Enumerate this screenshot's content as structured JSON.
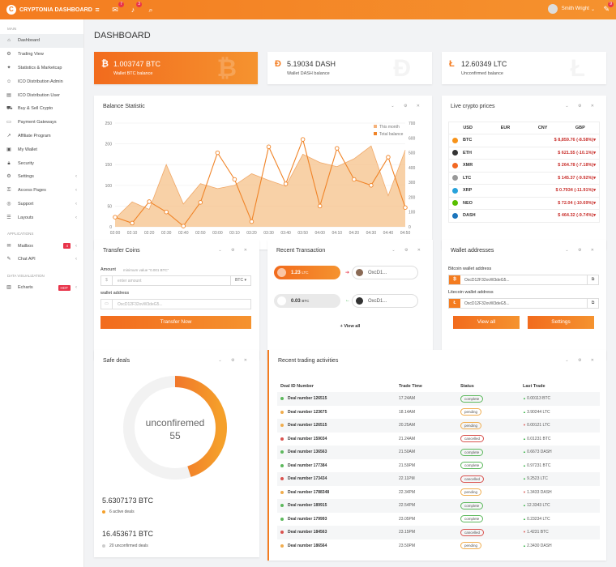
{
  "header": {
    "brand": "CRYPTONIA DASHBOARD",
    "user": "Smith Wright",
    "mail_badge": "7",
    "bell_badge": "3",
    "chat_badge": "9"
  },
  "sidebar": {
    "main_label": "MAIN",
    "apps_label": "APPLICATIONS",
    "dataviz_label": "DATA VISUALIZATION",
    "items": [
      {
        "label": "Dashboard",
        "icon": "home-icon"
      },
      {
        "label": "Trading View",
        "icon": "gear-icon"
      },
      {
        "label": "Statistics & Marketcap",
        "icon": "pin-icon"
      },
      {
        "label": "ICO Distribution Admin",
        "icon": "user-icon"
      },
      {
        "label": "ICO Distribution User",
        "icon": "file-icon"
      },
      {
        "label": "Buy & Sell Crypto",
        "icon": "cart-icon"
      },
      {
        "label": "Payment Gateways",
        "icon": "card-icon"
      },
      {
        "label": "Affiliate Program",
        "icon": "share-icon"
      },
      {
        "label": "My Wallet",
        "icon": "wallet-icon"
      },
      {
        "label": "Security",
        "icon": "lock-icon"
      },
      {
        "label": "Settings",
        "icon": "gear-icon"
      },
      {
        "label": "Access Pages",
        "icon": "key-icon"
      },
      {
        "label": "Support",
        "icon": "support-icon"
      },
      {
        "label": "Layouts",
        "icon": "layers-icon"
      }
    ],
    "apps": [
      {
        "label": "Mailbox",
        "icon": "mail-icon",
        "badge": "4"
      },
      {
        "label": "Chat API",
        "icon": "chat-icon"
      }
    ],
    "viz": [
      {
        "label": "Echarts",
        "icon": "chart-icon",
        "badge": "HOT"
      }
    ]
  },
  "page_title": "DASHBOARD",
  "stats": [
    {
      "value": "1.003747 BTC",
      "label": "Wallet BTC balance",
      "symbol": "₿"
    },
    {
      "value": "5.19034 DASH",
      "label": "Wallet DASH balance",
      "symbol": "Đ"
    },
    {
      "value": "12.60349 LTC",
      "label": "Unconfirmed balance",
      "symbol": "Ł"
    }
  ],
  "balance": {
    "title": "Balance Statistic",
    "legend_month": "This month",
    "legend_total": "Total balance"
  },
  "chart_data": {
    "type": "line",
    "x": [
      "02:00",
      "02:10",
      "02:20",
      "02:30",
      "02:40",
      "02:50",
      "03:00",
      "03:10",
      "03:20",
      "03:30",
      "03:40",
      "03:50",
      "04:00",
      "04:10",
      "04:20",
      "04:30",
      "04:40",
      "04:50"
    ],
    "ylim_left": [
      0,
      250
    ],
    "ylim_right": [
      0,
      700
    ],
    "series": [
      {
        "name": "This month",
        "axis": "left",
        "values": [
          20,
          60,
          42,
          150,
          55,
          104,
          92,
          100,
          128,
          112,
          98,
          175,
          155,
          145,
          164,
          195,
          75,
          185
        ]
      },
      {
        "name": "Total balance",
        "axis": "right",
        "values": [
          65,
          25,
          170,
          100,
          5,
          165,
          500,
          320,
          35,
          540,
          290,
          590,
          140,
          530,
          320,
          280,
          470,
          130
        ]
      }
    ]
  },
  "prices": {
    "title": "Live crypto prices",
    "tabs": [
      "USD",
      "EUR",
      "CNY",
      "GBP"
    ],
    "rows": [
      {
        "coin": "BTC",
        "price": "$ 8,859.76 (-8.58%)",
        "color": "#f7931a"
      },
      {
        "coin": "ETH",
        "price": "$ 621.55 (-10.1%)",
        "color": "#333"
      },
      {
        "coin": "XMR",
        "price": "$ 264.78 (-7.18%)",
        "color": "#f26822"
      },
      {
        "coin": "LTC",
        "price": "$ 145.37 (-9.92%)",
        "color": "#999"
      },
      {
        "coin": "XRP",
        "price": "$ 0.7934 (-11.91%)",
        "color": "#27a2db"
      },
      {
        "coin": "NEO",
        "price": "$ 72.04 (-10.69%)",
        "color": "#58bf00"
      },
      {
        "coin": "DASH",
        "price": "$ 464.32 (-9.74%)",
        "color": "#1c75bc"
      }
    ]
  },
  "transfer": {
    "title": "Transfer Coins",
    "amount_label": "Amount",
    "min_label": "minimum value \"0.001 BTC\"",
    "amount_placeholder": "enter amount",
    "currency": "BTC",
    "wallet_label": "wallet address",
    "wallet_value": "OxcD12F32xvW3deG5...",
    "button": "Transfer Now"
  },
  "recent_tx": {
    "title": "Recent Transaction",
    "tx1_amount": "1.23",
    "tx1_unit": "LTC",
    "tx1_addr": "OxcD1...",
    "tx2_amount": "0.03",
    "tx2_unit": "BTC",
    "tx2_addr": "OxcD1...",
    "view_all": "View all"
  },
  "wallets": {
    "title": "Wallet addresses",
    "btc_label": "Bitcoin wallet address",
    "btc_value": "OxcD12F32xvW3deG5...",
    "ltc_label": "Litecoin wallet address",
    "ltc_value": "OxcD12F32xvW3deG5...",
    "view_all": "View all",
    "settings": "Settings"
  },
  "safe": {
    "title": "Safe deals",
    "center_label": "unconfiremed",
    "center_value": "55",
    "percent": 0.45,
    "btc1": "5.6307173 BTC",
    "sub1": "6 active deals",
    "btc2": "16.453671 BTC",
    "sub2": "20 unconfirmed deals"
  },
  "trading": {
    "title": "Recent trading activities",
    "headers": [
      "Deal ID Number",
      "Trade Time",
      "Status",
      "Last Trade"
    ],
    "rows": [
      [
        "Deal number 126515",
        "17.24AM",
        "complete",
        "0.00113 BTC",
        "up"
      ],
      [
        "Deal number 123675",
        "18.14AM",
        "pending",
        "3.90244 LTC",
        "up"
      ],
      [
        "Deal number 126515",
        "20.25AM",
        "pending",
        "0.00121 LTC",
        "down"
      ],
      [
        "Deal number 159034",
        "21.24AM",
        "cancelled",
        "0.01231 BTC",
        "up"
      ],
      [
        "Deal number 136563",
        "21.50AM",
        "complete",
        "0.6673 DASH",
        "up"
      ],
      [
        "Deal number 177384",
        "21.59PM",
        "complete",
        "0.97231 BTC",
        "up"
      ],
      [
        "Deal number 173434",
        "22.11PM",
        "cancelled",
        "9.2523 LTC",
        "up"
      ],
      [
        "Deal number 1788348",
        "22.34PM",
        "pending",
        "1.3433 DASH",
        "down"
      ],
      [
        "Deal number 189915",
        "22.54PM",
        "complete",
        "12.3343 LTC",
        "up"
      ],
      [
        "Deal number 179993",
        "23.05PM",
        "complete",
        "0.23234 LTC",
        "up"
      ],
      [
        "Deal number 184563",
        "23.15PM",
        "cancelled",
        "1.4231 BTC",
        "down"
      ],
      [
        "Deal number 186564",
        "23.50PM",
        "pending",
        "2.3430 DASH",
        "up"
      ]
    ]
  }
}
